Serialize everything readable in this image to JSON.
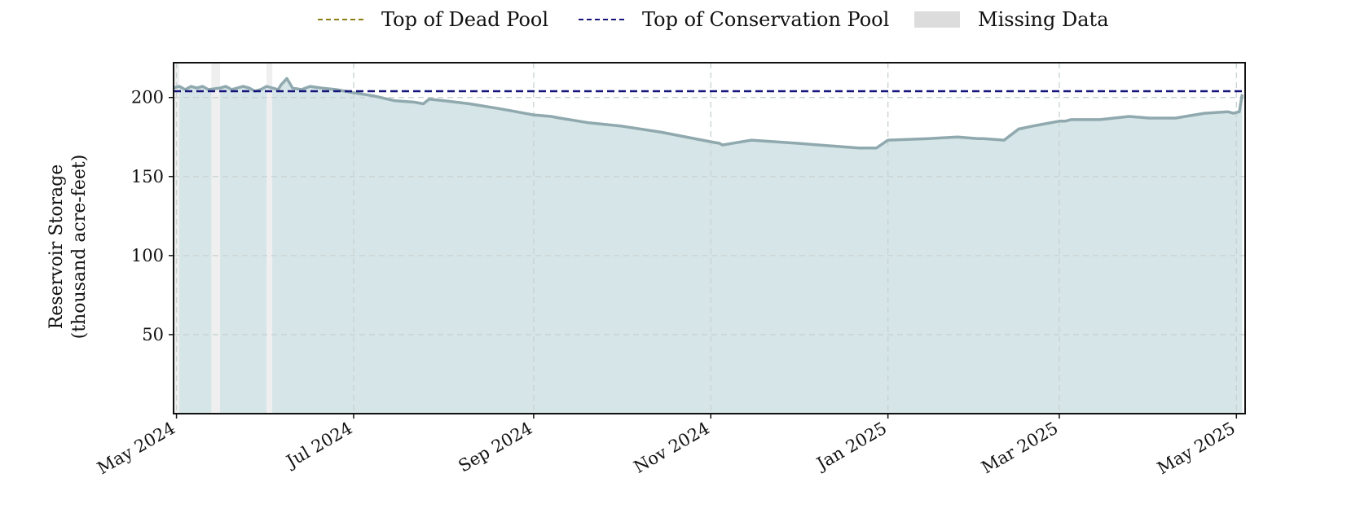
{
  "legend": {
    "dead_pool": "Top of Dead Pool",
    "conservation_pool": "Top of Conservation Pool",
    "missing": "Missing Data"
  },
  "colors": {
    "storage_line": "#8fa9ae",
    "storage_fill": "#d6e5e7",
    "dead_pool": "#8b7d17",
    "conservation_pool": "#14147a",
    "missing": "#efefef",
    "grid": "#c8d2d2"
  },
  "chart_data": {
    "type": "area",
    "ylabel_line1": "Reservoir Storage",
    "ylabel_line2": "(thousand acre-feet)",
    "x_ticks": [
      {
        "date": "2024-05-01",
        "label": "May 2024"
      },
      {
        "date": "2024-07-01",
        "label": "Jul 2024"
      },
      {
        "date": "2024-09-01",
        "label": "Sep 2024"
      },
      {
        "date": "2024-11-01",
        "label": "Nov 2024"
      },
      {
        "date": "2025-01-01",
        "label": "Jan 2025"
      },
      {
        "date": "2025-03-01",
        "label": "Mar 2025"
      },
      {
        "date": "2025-05-01",
        "label": "May 2025"
      }
    ],
    "y_ticks": [
      50,
      100,
      150,
      200
    ],
    "xlim": [
      "2024-04-30",
      "2025-05-04"
    ],
    "ylim": [
      0,
      222
    ],
    "grid": true,
    "conservation_pool": 204,
    "missing_ranges": [
      [
        "2024-04-30",
        "2024-05-02"
      ],
      [
        "2024-05-13",
        "2024-05-16"
      ],
      [
        "2024-06-01",
        "2024-06-03"
      ]
    ],
    "series": [
      {
        "x": [
          "2024-04-30",
          "2024-05-02",
          "2024-05-04",
          "2024-05-06",
          "2024-05-08",
          "2024-05-10",
          "2024-05-12",
          "2024-05-16",
          "2024-05-18",
          "2024-05-20",
          "2024-05-22",
          "2024-05-24",
          "2024-05-26",
          "2024-05-28",
          "2024-05-30",
          "2024-06-01",
          "2024-06-03",
          "2024-06-05",
          "2024-06-06",
          "2024-06-08",
          "2024-06-10",
          "2024-06-13",
          "2024-06-16",
          "2024-06-20",
          "2024-06-25",
          "2024-07-01",
          "2024-07-08",
          "2024-07-15",
          "2024-07-22",
          "2024-07-25",
          "2024-07-27",
          "2024-08-01",
          "2024-08-10",
          "2024-08-20",
          "2024-09-01",
          "2024-09-07",
          "2024-09-10",
          "2024-09-20",
          "2024-10-01",
          "2024-10-15",
          "2024-11-01",
          "2024-11-04",
          "2024-11-05",
          "2024-11-15",
          "2024-12-01",
          "2024-12-15",
          "2024-12-22",
          "2024-12-26",
          "2024-12-28",
          "2025-01-01",
          "2025-01-15",
          "2025-01-25",
          "2025-02-01",
          "2025-02-03",
          "2025-02-10",
          "2025-02-15",
          "2025-02-20",
          "2025-03-01",
          "2025-03-03",
          "2025-03-05",
          "2025-03-15",
          "2025-03-25",
          "2025-04-01",
          "2025-04-10",
          "2025-04-20",
          "2025-04-28",
          "2025-04-30",
          "2025-05-02",
          "2025-05-03"
        ],
        "y": [
          206,
          207,
          205,
          207,
          206,
          207,
          205,
          206,
          207,
          205,
          206,
          207,
          206,
          204,
          205,
          207,
          206,
          205,
          208,
          212,
          206,
          205,
          207,
          206,
          205,
          203,
          201,
          198,
          197,
          196,
          199,
          198,
          196,
          193,
          189,
          188,
          187,
          184,
          182,
          178,
          172,
          171,
          170,
          173,
          171,
          169,
          168,
          168,
          168,
          173,
          174,
          175,
          174,
          174,
          173,
          180,
          182,
          185,
          185,
          186,
          186,
          188,
          187,
          187,
          190,
          191,
          190,
          191,
          202
        ]
      }
    ]
  }
}
